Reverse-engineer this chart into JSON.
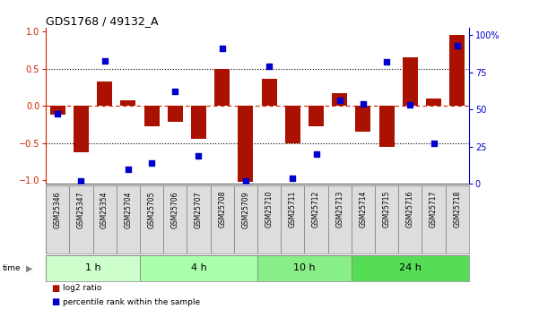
{
  "title": "GDS1768 / 49132_A",
  "samples": [
    "GSM25346",
    "GSM25347",
    "GSM25354",
    "GSM25704",
    "GSM25705",
    "GSM25706",
    "GSM25707",
    "GSM25708",
    "GSM25709",
    "GSM25710",
    "GSM25711",
    "GSM25712",
    "GSM25713",
    "GSM25714",
    "GSM25715",
    "GSM25716",
    "GSM25717",
    "GSM25718"
  ],
  "log2_ratio": [
    -0.12,
    -0.62,
    0.33,
    0.07,
    -0.27,
    -0.22,
    -0.45,
    0.5,
    -1.02,
    0.36,
    -0.5,
    -0.28,
    0.17,
    -0.35,
    -0.55,
    0.65,
    0.1,
    0.95
  ],
  "pct_rank": [
    47,
    2,
    83,
    10,
    14,
    62,
    19,
    91,
    2,
    79,
    4,
    20,
    56,
    54,
    82,
    53,
    27,
    93
  ],
  "groups": [
    {
      "label": "1 h",
      "start": 0,
      "end": 4,
      "color": "#ccffcc"
    },
    {
      "label": "4 h",
      "start": 4,
      "end": 9,
      "color": "#aaffaa"
    },
    {
      "label": "10 h",
      "start": 9,
      "end": 13,
      "color": "#88ee88"
    },
    {
      "label": "24 h",
      "start": 13,
      "end": 18,
      "color": "#55dd55"
    }
  ],
  "bar_color": "#aa1100",
  "dot_color": "#0000cc",
  "ylim_left": [
    -1.05,
    1.05
  ],
  "ylim_right": [
    0,
    105
  ],
  "yticks_left": [
    -1,
    -0.5,
    0,
    0.5,
    1
  ],
  "yticks_right": [
    0,
    25,
    50,
    75,
    100
  ],
  "hlines_dotted": [
    -0.5,
    0.5
  ],
  "hline_zero": 0,
  "bar_width": 0.65,
  "dot_size": 22,
  "background_color": "#ffffff"
}
